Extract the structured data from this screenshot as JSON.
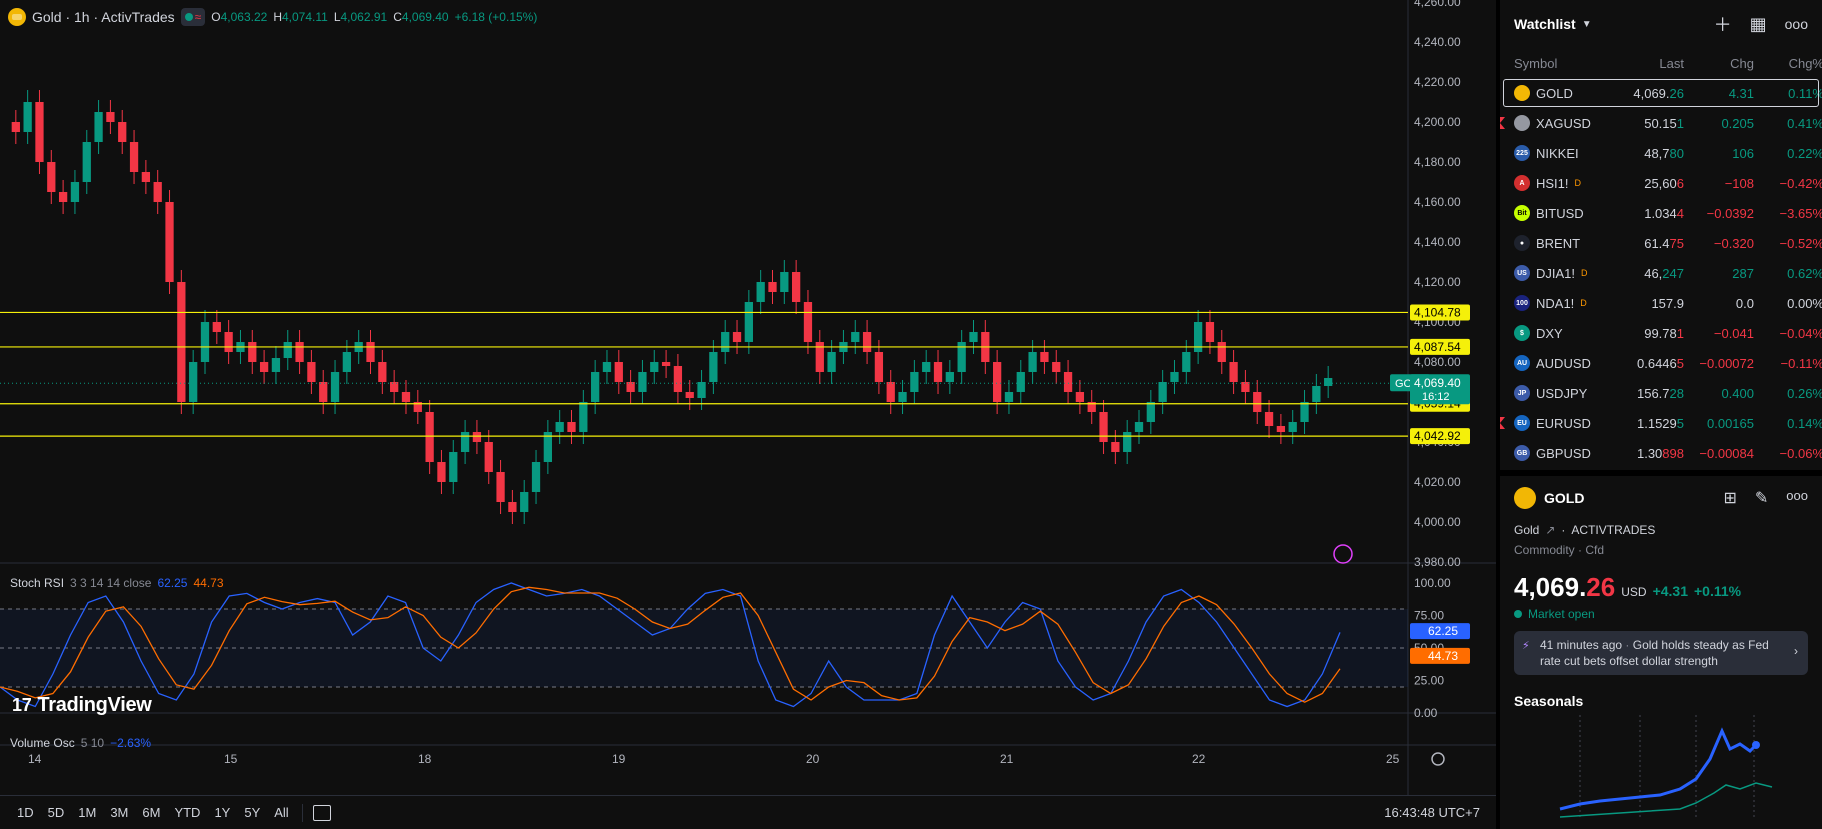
{
  "legend": {
    "title": "Gold · 1h · ActivTrades",
    "ohlc": [
      {
        "k": "O",
        "v": "4,063.22"
      },
      {
        "k": "H",
        "v": "4,074.11"
      },
      {
        "k": "L",
        "v": "4,062.91"
      },
      {
        "k": "C",
        "v": "4,069.40"
      }
    ],
    "change": "+6.18 (+0.15%)"
  },
  "price_axis": {
    "ticks": [
      "4,260.00",
      "4,240.00",
      "4,220.00",
      "4,200.00",
      "4,180.00",
      "4,160.00",
      "4,140.00",
      "4,120.00",
      "4,100.00",
      "4,080.00",
      "4,060.00",
      "4,040.00",
      "4,020.00",
      "4,000.00",
      "3,980.00"
    ],
    "levels": [
      "4,104.78",
      "4,087.54",
      "4,059.14",
      "4,042.92"
    ],
    "current_symbol": "GOLD",
    "current_price": "4,069.40",
    "countdown": "16:12"
  },
  "time_axis": {
    "labels": [
      "14",
      "15",
      "18",
      "19",
      "20",
      "21",
      "22",
      "25"
    ]
  },
  "stoch": {
    "title": "Stoch RSI",
    "params": "3 3 14 14 close",
    "k_value": "62.25",
    "d_value": "44.73",
    "axis": [
      "100.00",
      "75.00",
      "50.00",
      "25.00",
      "0.00"
    ]
  },
  "volume_osc": {
    "title": "Volume Osc",
    "params": "5 10",
    "value": "−2.63%"
  },
  "branding": {
    "logo_text": "TradingView"
  },
  "bottom_bar": {
    "ranges": [
      "1D",
      "5D",
      "1M",
      "3M",
      "6M",
      "YTD",
      "1Y",
      "5Y",
      "All"
    ],
    "clock": "16:43:48 UTC+7"
  },
  "watchlist": {
    "title": "Watchlist",
    "columns": [
      "Symbol",
      "Last",
      "Chg",
      "Chg%"
    ],
    "rows": [
      {
        "symbol": "GOLD",
        "last_a": "4,069.",
        "last_b": "26",
        "chg": "4.31",
        "chgp": "0.11%",
        "dir": "pos",
        "icon_color": "#f2b705",
        "icon_text": ""
      },
      {
        "symbol": "XAGUSD",
        "last_a": "50.15",
        "last_b": "1",
        "chg": "0.205",
        "chgp": "0.41%",
        "dir": "pos",
        "icon_color": "#9598a1",
        "icon_text": ""
      },
      {
        "symbol": "NIKKEI",
        "last_a": "48,7",
        "last_b": "80",
        "chg": "106",
        "chgp": "0.22%",
        "dir": "pos",
        "icon_color": "#2a5caa",
        "icon_text": "225"
      },
      {
        "symbol": "HSI1!",
        "last_a": "25,60",
        "last_b": "6",
        "chg": "−108",
        "chgp": "−0.42%",
        "dir": "neg",
        "icon_color": "#d32f2f",
        "icon_text": "A",
        "delay": "D"
      },
      {
        "symbol": "BITUSD",
        "last_a": "1.034",
        "last_b": "4",
        "chg": "−0.0392",
        "chgp": "−3.65%",
        "dir": "neg",
        "icon_color": "#c6ff00",
        "icon_text": "Bit"
      },
      {
        "symbol": "BRENT",
        "last_a": "61.4",
        "last_b": "75",
        "chg": "−0.320",
        "chgp": "−0.52%",
        "dir": "neg",
        "icon_color": "#1e222d",
        "icon_text": "●"
      },
      {
        "symbol": "DJIA1!",
        "last_a": "46,",
        "last_b": "247",
        "chg": "287",
        "chgp": "0.62%",
        "dir": "pos",
        "icon_color": "#3c5ba9",
        "icon_text": "US",
        "delay": "D"
      },
      {
        "symbol": "NDA1!",
        "last_a": "157.9",
        "last_b": "",
        "chg": "0.0",
        "chgp": "0.00%",
        "dir": "flat",
        "icon_color": "#1a237e",
        "icon_text": "100",
        "delay": "D"
      },
      {
        "symbol": "DXY",
        "last_a": "99.78",
        "last_b": "1",
        "chg": "−0.041",
        "chgp": "−0.04%",
        "dir": "neg",
        "icon_color": "#089981",
        "icon_text": "$"
      },
      {
        "symbol": "AUDUSD",
        "last_a": "0.6446",
        "last_b": "5",
        "chg": "−0.00072",
        "chgp": "−0.11%",
        "dir": "neg",
        "icon_color": "#1565c0",
        "icon_text": "AU"
      },
      {
        "symbol": "USDJPY",
        "last_a": "156.7",
        "last_b": "28",
        "chg": "0.400",
        "chgp": "0.26%",
        "dir": "pos",
        "icon_color": "#3c5ba9",
        "icon_text": "JP"
      },
      {
        "symbol": "EURUSD",
        "last_a": "1.1529",
        "last_b": "5",
        "chg": "0.00165",
        "chgp": "0.14%",
        "dir": "pos",
        "icon_color": "#1565c0",
        "icon_text": "EU"
      },
      {
        "symbol": "GBPUSD",
        "last_a": "1.30",
        "last_b": "898",
        "chg": "−0.00084",
        "chgp": "−0.06%",
        "dir": "neg",
        "icon_color": "#3c5ba9",
        "icon_text": "GB"
      }
    ]
  },
  "details": {
    "symbol": "GOLD",
    "name": "Gold",
    "exchange": "ACTIVTRADES",
    "category": "Commodity · Cfd",
    "price_main": "4,069.",
    "price_tail": "26",
    "currency": "USD",
    "change": "+4.31",
    "change_pct": "+0.11%",
    "market_status": "Market open",
    "news_time": "41 minutes ago",
    "news_text": "Gold holds steady as Fed rate cut bets offset dollar strength",
    "seasonals_title": "Seasonals"
  },
  "colors": {
    "up": "#089981",
    "down": "#f23645",
    "level": "#f5f00a",
    "k_line": "#2962ff",
    "d_line": "#ff6d00"
  }
}
